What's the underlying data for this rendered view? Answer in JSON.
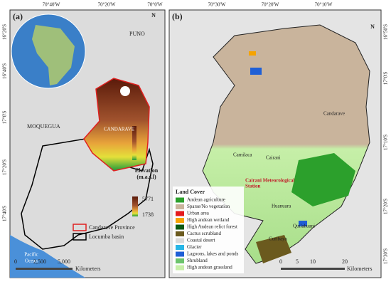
{
  "panel_a": {
    "label": "(a)",
    "top_ticks": [
      "70°40'W",
      "70°20'W",
      "70°0'W"
    ],
    "left_ticks": [
      "16°20'S",
      "16°40'S",
      "17°0'S",
      "17°20'S",
      "17°40'S"
    ],
    "north": "N",
    "places": {
      "puno": "PUNO",
      "moquegua": "MOQUEGUA",
      "candarave": "CANDARAVE",
      "ocean": [
        "Pacific",
        "Ocean"
      ]
    },
    "elevation": {
      "title": [
        "Elevation",
        "(m.a.s.l)"
      ],
      "max": 5771,
      "min": 1738
    },
    "legend": [
      {
        "label": "Candarave Province",
        "color": "#e02020"
      },
      {
        "label": "Locumba basin",
        "color": "#000000"
      }
    ],
    "scale": {
      "ticks": [
        "0",
        "2,500",
        "5,000"
      ],
      "unit": "Kilometers"
    }
  },
  "panel_b": {
    "label": "(b)",
    "top_ticks": [
      "70°30'W",
      "70°20'W",
      "70°10'W"
    ],
    "right_ticks": [
      "16°50'S",
      "17°0'S",
      "17°10'S",
      "17°20'S",
      "17°30'S"
    ],
    "north": "N",
    "places": {
      "candarave": "Candarave",
      "camilaca": "Camilaca",
      "cairani": "Cairani",
      "station": [
        "Cairani Meteorological",
        "Station"
      ],
      "huanuara": "Huanuara",
      "quilahuani": "Quilahuani",
      "curibaya": "Curibaya"
    },
    "legend_title": "Land Cover",
    "legend": [
      {
        "label": "Andean agriculture",
        "color": "#2ca02c"
      },
      {
        "label": "Sparse/No vegetation",
        "color": "#c9b49c"
      },
      {
        "label": "Urban area",
        "color": "#e41a1c"
      },
      {
        "label": "High andean wetland",
        "color": "#f5a300"
      },
      {
        "label": "High Andean relict forest",
        "color": "#0b5a12"
      },
      {
        "label": "Cactus scrubland",
        "color": "#6b5a1e"
      },
      {
        "label": "Coastal desert",
        "color": "#d9d9d9"
      },
      {
        "label": "Glacier",
        "color": "#29b6e6"
      },
      {
        "label": "Lagoons, lakes and ponds",
        "color": "#1f5fd6"
      },
      {
        "label": "Shrubland",
        "color": "#6cc36c"
      },
      {
        "label": "High andean grassland",
        "color": "#c6efa8"
      }
    ],
    "scale": {
      "ticks": [
        "0",
        "5",
        "10",
        "20"
      ],
      "unit": "Kilometers"
    }
  }
}
